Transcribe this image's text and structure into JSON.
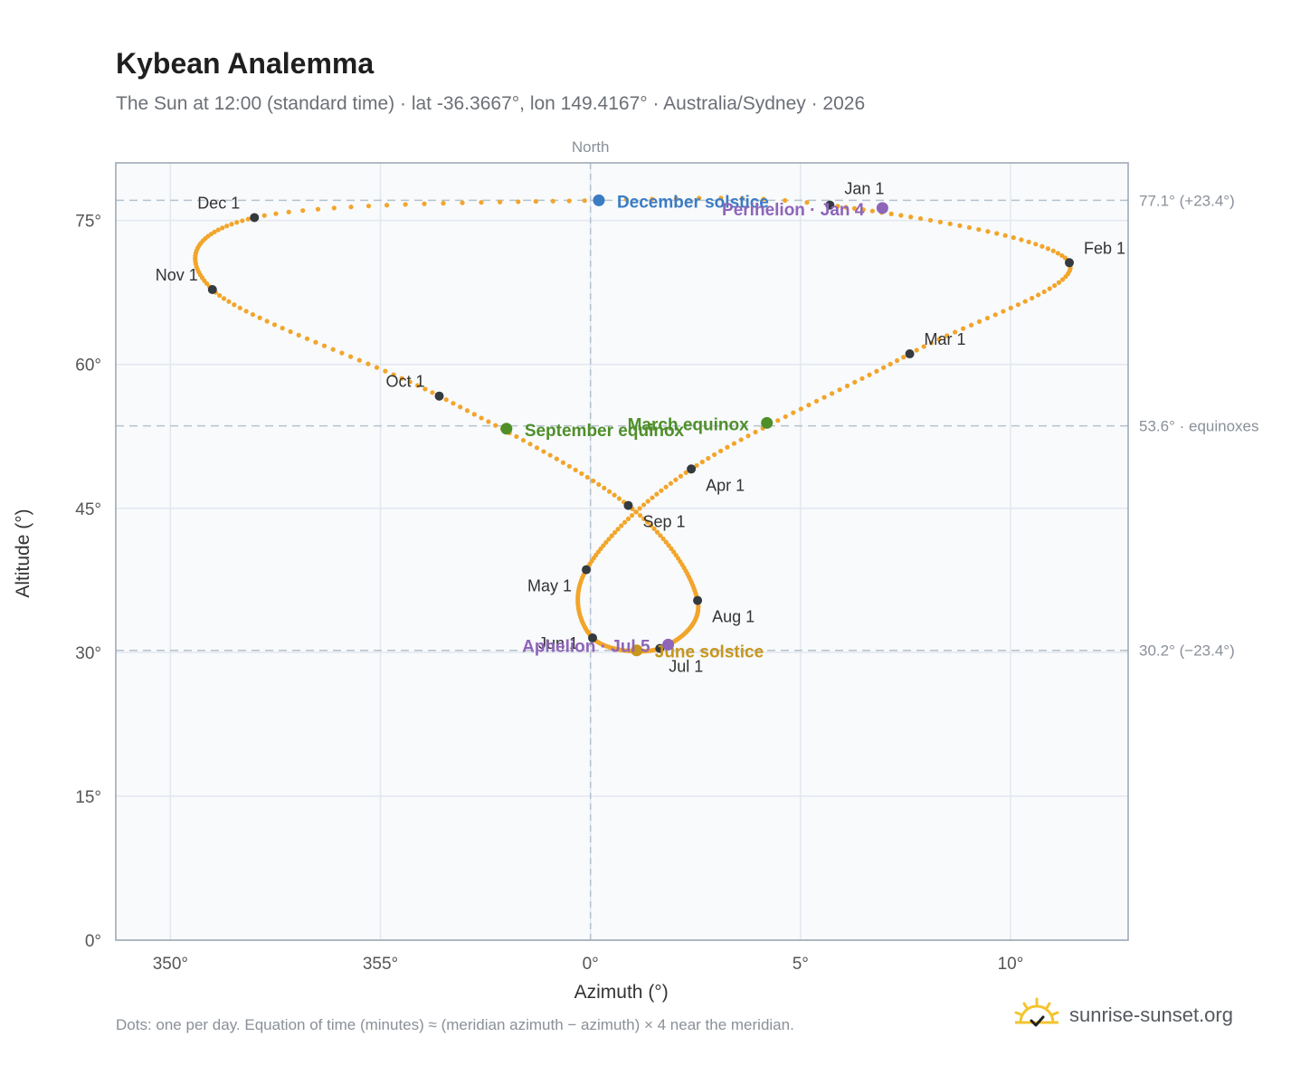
{
  "title": "Kybean Analemma",
  "subtitle": "The Sun at 12:00 (standard time) · lat -36.3667°, lon 149.4167° · Australia/Sydney · 2026",
  "footer_note": "Dots: one per day. Equation of time (minutes) ≈ (meridian azimuth − azimuth) × 4 near the meridian.",
  "brand": {
    "text": "sunrise-sunset.org",
    "icon": "sunrise-logo-icon"
  },
  "colors": {
    "curve": "#f2a52a",
    "month_dot": "#343a40",
    "solstice_december": "#3a7cc4",
    "solstice_june": "#c8961c",
    "equinox": "#4f8f2a",
    "apsis": "#8e65b8",
    "plot_bg": "#f8fafc",
    "grid": "#e3e8ee",
    "ref_line": "#b5c2cc"
  },
  "chart_data": {
    "type": "scatter",
    "title": "Kybean Analemma",
    "xlabel": "Azimuth (°)",
    "ylabel": "Altitude (°)",
    "xlim": [
      348.7,
      12.8
    ],
    "ylim": [
      0,
      81
    ],
    "x_ticks": [
      350,
      355,
      0,
      5,
      10
    ],
    "x_tick_labels": [
      "350°",
      "355°",
      "0°",
      "5°",
      "10°"
    ],
    "y_ticks": [
      0,
      15,
      30,
      45,
      60,
      75
    ],
    "y_tick_labels": [
      "0°",
      "15°",
      "30°",
      "45°",
      "60°",
      "75°"
    ],
    "grid": true,
    "meridian_label": "North",
    "reference_lines": [
      {
        "y": 77.1,
        "label": "77.1° (+23.4°)"
      },
      {
        "y": 53.6,
        "label": "53.6° · equinoxes"
      },
      {
        "y": 30.2,
        "label": "30.2° (−23.4°)"
      }
    ],
    "months": [
      {
        "label": "Jan 1",
        "az": 5.7,
        "alt": 76.6,
        "doy": 1
      },
      {
        "label": "Feb 1",
        "az": 11.4,
        "alt": 70.6,
        "doy": 32
      },
      {
        "label": "Mar 1",
        "az": 7.6,
        "alt": 61.1,
        "doy": 60
      },
      {
        "label": "Apr 1",
        "az": 2.4,
        "alt": 49.1,
        "doy": 91
      },
      {
        "label": "May 1",
        "az": -0.1,
        "alt": 38.6,
        "doy": 121
      },
      {
        "label": "Jun 1",
        "az": 0.05,
        "alt": 31.5,
        "doy": 152
      },
      {
        "label": "Jul 1",
        "az": 1.65,
        "alt": 30.4,
        "doy": 182
      },
      {
        "label": "Aug 1",
        "az": 2.55,
        "alt": 35.4,
        "doy": 213
      },
      {
        "label": "Sep 1",
        "az": 0.9,
        "alt": 45.3,
        "doy": 244
      },
      {
        "label": "Oct 1",
        "az": -3.6,
        "alt": 56.7,
        "doy": 274
      },
      {
        "label": "Nov 1",
        "az": -9.0,
        "alt": 67.8,
        "doy": 305
      },
      {
        "label": "Dec 1",
        "az": -8.0,
        "alt": 75.3,
        "doy": 335
      }
    ],
    "events": [
      {
        "label": "December solstice",
        "az": 0.2,
        "alt": 77.1,
        "kind": "solstice_december"
      },
      {
        "label": "Perihelion · Jan 4",
        "az": 6.95,
        "alt": 76.3,
        "kind": "apsis"
      },
      {
        "label": "March equinox",
        "az": 4.2,
        "alt": 53.9,
        "kind": "equinox"
      },
      {
        "label": "September equinox",
        "az": -2.0,
        "alt": 53.3,
        "kind": "equinox"
      },
      {
        "label": "June solstice",
        "az": 1.1,
        "alt": 30.2,
        "kind": "solstice_june"
      },
      {
        "label": "Aphelion · Jul 5",
        "az": 1.85,
        "alt": 30.8,
        "kind": "apsis"
      }
    ],
    "curve_anchors": [
      {
        "doy": 1,
        "az": 5.7,
        "alt": 76.6
      },
      {
        "doy": 32,
        "az": 11.4,
        "alt": 70.6
      },
      {
        "doy": 60,
        "az": 7.6,
        "alt": 61.1
      },
      {
        "doy": 91,
        "az": 2.4,
        "alt": 49.1
      },
      {
        "doy": 121,
        "az": -0.1,
        "alt": 38.6
      },
      {
        "doy": 152,
        "az": 0.05,
        "alt": 31.5
      },
      {
        "doy": 182,
        "az": 1.65,
        "alt": 30.4
      },
      {
        "doy": 213,
        "az": 2.55,
        "alt": 35.4
      },
      {
        "doy": 244,
        "az": 0.9,
        "alt": 45.3
      },
      {
        "doy": 274,
        "az": -3.6,
        "alt": 56.7
      },
      {
        "doy": 305,
        "az": -9.0,
        "alt": 67.8
      },
      {
        "doy": 335,
        "az": -8.0,
        "alt": 75.3
      },
      {
        "doy": 356,
        "az": 0.2,
        "alt": 77.1
      },
      {
        "doy": 366,
        "az": 5.7,
        "alt": 76.6
      }
    ]
  }
}
